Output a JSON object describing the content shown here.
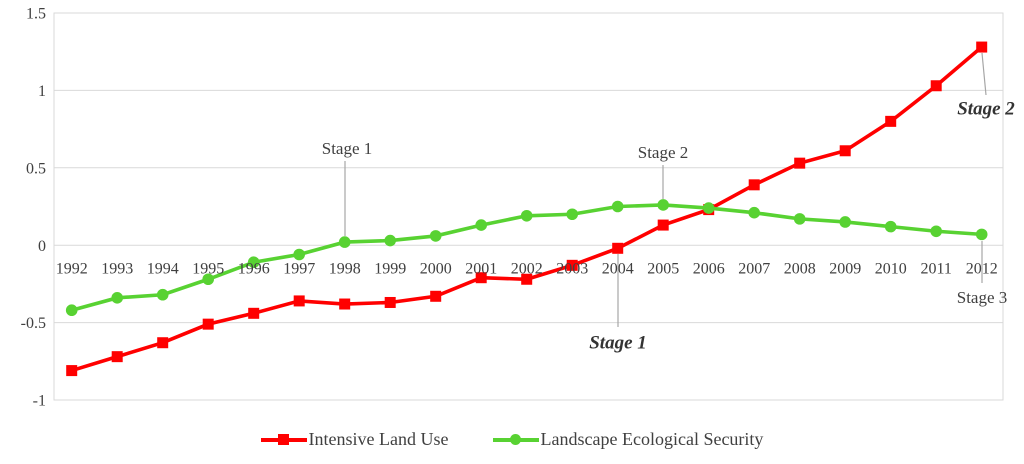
{
  "chart_data": {
    "type": "line",
    "title": "",
    "xlabel": "",
    "ylabel": "",
    "x": [
      1992,
      1993,
      1994,
      1995,
      1996,
      1997,
      1998,
      1999,
      2000,
      2001,
      2002,
      2003,
      2004,
      2005,
      2006,
      2007,
      2008,
      2009,
      2010,
      2011,
      2012
    ],
    "series": [
      {
        "name": "Intensive Land Use",
        "color": "#ff0000",
        "marker": "square",
        "values": [
          -0.81,
          -0.72,
          -0.63,
          -0.51,
          -0.44,
          -0.36,
          -0.38,
          -0.37,
          -0.33,
          -0.21,
          -0.22,
          -0.13,
          -0.02,
          0.13,
          0.23,
          0.39,
          0.53,
          0.61,
          0.8,
          1.03,
          1.28
        ]
      },
      {
        "name": "Landscape Ecological Security",
        "color": "#58d232",
        "marker": "circle",
        "values": [
          -0.42,
          -0.34,
          -0.32,
          -0.22,
          -0.11,
          -0.06,
          0.02,
          0.03,
          0.06,
          0.13,
          0.19,
          0.2,
          0.25,
          0.26,
          0.24,
          0.21,
          0.17,
          0.15,
          0.12,
          0.09,
          0.07
        ]
      }
    ],
    "ylim": [
      -1,
      1.5
    ],
    "yticks": [
      1.5,
      1,
      0.5,
      0,
      -0.5,
      -1
    ],
    "ytick_labels": [
      "1.5",
      "1",
      "0.5",
      "0",
      "-0.5",
      "-1"
    ],
    "grid": "horizontal",
    "legend_position": "bottom-center",
    "annotations": [
      {
        "text": "Stage 1",
        "style": "normal",
        "x": 347,
        "y": 148,
        "line": {
          "x1": 345,
          "y1": 161,
          "x2": 345,
          "y2": 236
        }
      },
      {
        "text": "Stage 2",
        "style": "normal",
        "x": 663,
        "y": 152,
        "line": {
          "x1": 663,
          "y1": 165,
          "x2": 663,
          "y2": 199
        }
      },
      {
        "text": "Stage 1",
        "style": "bold-italic",
        "x": 618,
        "y": 342,
        "line": {
          "x1": 618,
          "y1": 254,
          "x2": 618,
          "y2": 327
        }
      },
      {
        "text": "Stage 2",
        "style": "bold-italic",
        "x": 986,
        "y": 108,
        "line": {
          "x1": 982,
          "y1": 53,
          "x2": 986,
          "y2": 95
        }
      },
      {
        "text": "Stage 3",
        "style": "normal",
        "x": 982,
        "y": 297,
        "line": {
          "x1": 982,
          "y1": 241,
          "x2": 982,
          "y2": 283
        }
      }
    ]
  },
  "colors": {
    "background": "#ffffff",
    "grid": "#d9d9d9",
    "axis_text": "#404040",
    "annotation_line": "#a6a6a6",
    "series_red": "#ff0000",
    "series_green": "#58d232"
  }
}
